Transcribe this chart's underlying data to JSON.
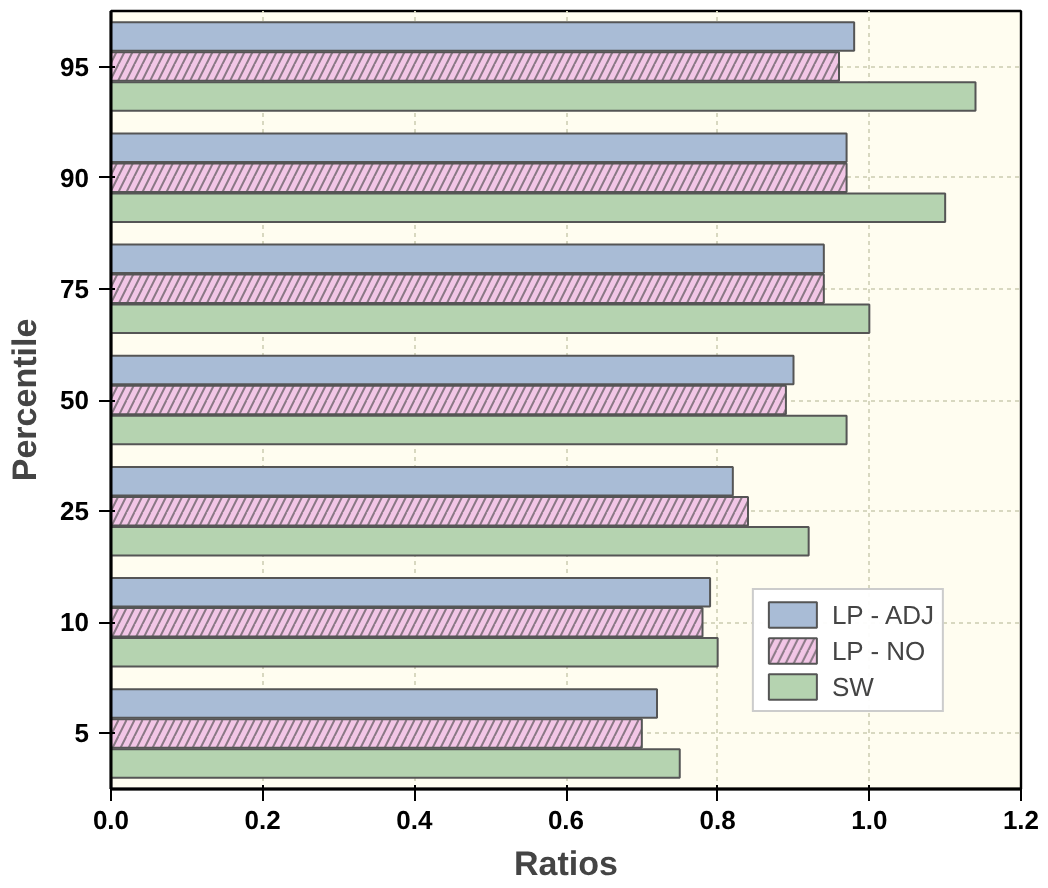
{
  "chart_data": {
    "type": "bar",
    "orientation": "horizontal",
    "xlabel": "Ratios",
    "ylabel": "Percentile",
    "categories": [
      "95",
      "90",
      "75",
      "50",
      "25",
      "10",
      "5"
    ],
    "series": [
      {
        "name": "LP - ADJ",
        "color": "#a9bcd6",
        "values": [
          0.98,
          0.97,
          0.94,
          0.9,
          0.82,
          0.79,
          0.72
        ]
      },
      {
        "name": "LP - NO",
        "color": "#f2c6e6",
        "values": [
          0.96,
          0.97,
          0.94,
          0.89,
          0.84,
          0.78,
          0.7
        ]
      },
      {
        "name": "SW",
        "color": "#b5d3b0",
        "values": [
          1.14,
          1.1,
          1.0,
          0.97,
          0.92,
          0.8,
          0.75
        ]
      }
    ],
    "xlim": [
      0,
      1.2
    ],
    "xticks": [
      {
        "value": 0,
        "label": "0.0"
      },
      {
        "value": 0.2,
        "label": "0.2"
      },
      {
        "value": 0.4,
        "label": "0.4"
      },
      {
        "value": 0.6,
        "label": "0.6"
      },
      {
        "value": 0.8,
        "label": "0.8"
      },
      {
        "value": 1.0,
        "label": "1.0"
      },
      {
        "value": 1.2,
        "label": "1.2"
      }
    ],
    "grid": true,
    "legend": "bottom right"
  }
}
